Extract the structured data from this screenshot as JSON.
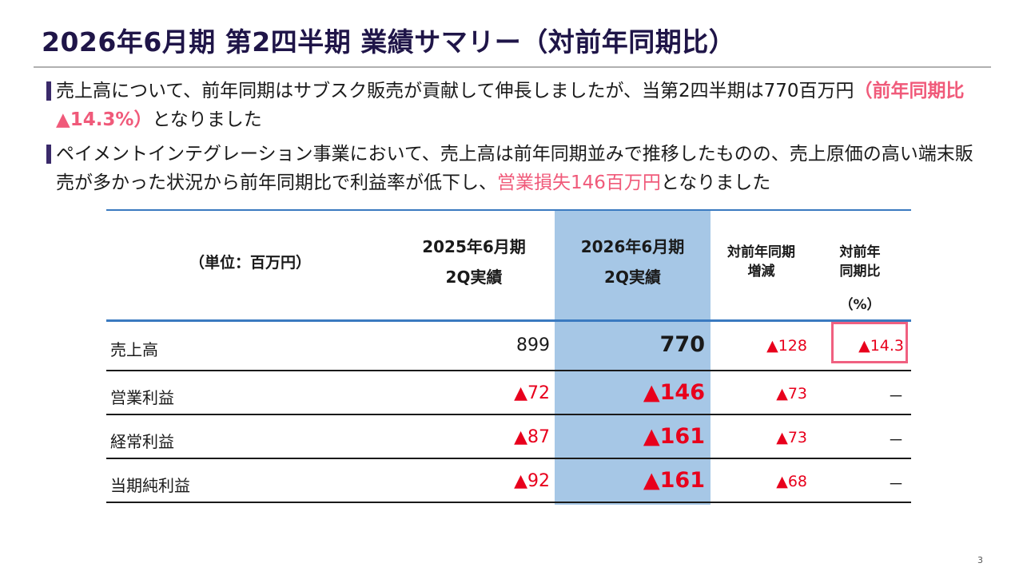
{
  "title": "2026年6月期 第2四半期 業績サマリー（対前年同期比）",
  "bullets": [
    {
      "segments": [
        {
          "text": "売上高について、前年同期はサブスク販売が貢献して伸長しましたが、当第2四半期は770百万円"
        },
        {
          "text": "（前年同期比▲14.3%）",
          "style": "red-bold"
        },
        {
          "text": "となりました"
        }
      ]
    },
    {
      "segments": [
        {
          "text": "ペイメントインテグレーション事業において、売上高は前年同期並みで推移したものの、売上原価の高い端末販売が多かった状況から前年同期比で利益率が低下し、"
        },
        {
          "text": "営業損失146百万円",
          "style": "red"
        },
        {
          "text": "となりました"
        }
      ]
    }
  ],
  "table": {
    "unit_label": "（単位：百万円）",
    "col_prev_line1": "2025年6月期",
    "col_prev_line2": "2Q実績",
    "col_curr_line1": "2026年6月期",
    "col_curr_line2": "2Q実績",
    "col_diff_line1": "対前年同期",
    "col_diff_line2": "増減",
    "col_ratio_line1": "対前年",
    "col_ratio_line2": "同期比",
    "col_ratio_line3": "（%）",
    "rows": [
      {
        "label": "売上高",
        "prev": "899",
        "curr": "770",
        "diff": "▲128",
        "ratio": "▲14.3"
      },
      {
        "label": "営業利益",
        "prev": "▲72",
        "curr": "▲146",
        "diff": "▲73",
        "ratio": "－"
      },
      {
        "label": "経常利益",
        "prev": "▲87",
        "curr": "▲161",
        "diff": "▲73",
        "ratio": "－"
      },
      {
        "label": "当期純利益",
        "prev": "▲92",
        "curr": "▲161",
        "diff": "▲68",
        "ratio": "－"
      }
    ]
  },
  "page_number": "3",
  "colors": {
    "title": "#1f1548",
    "accent_red": "#f05a7a",
    "negative_red": "#e8001c",
    "highlight_column": "#a6c7e6",
    "rule_blue": "#3a7ac0"
  }
}
